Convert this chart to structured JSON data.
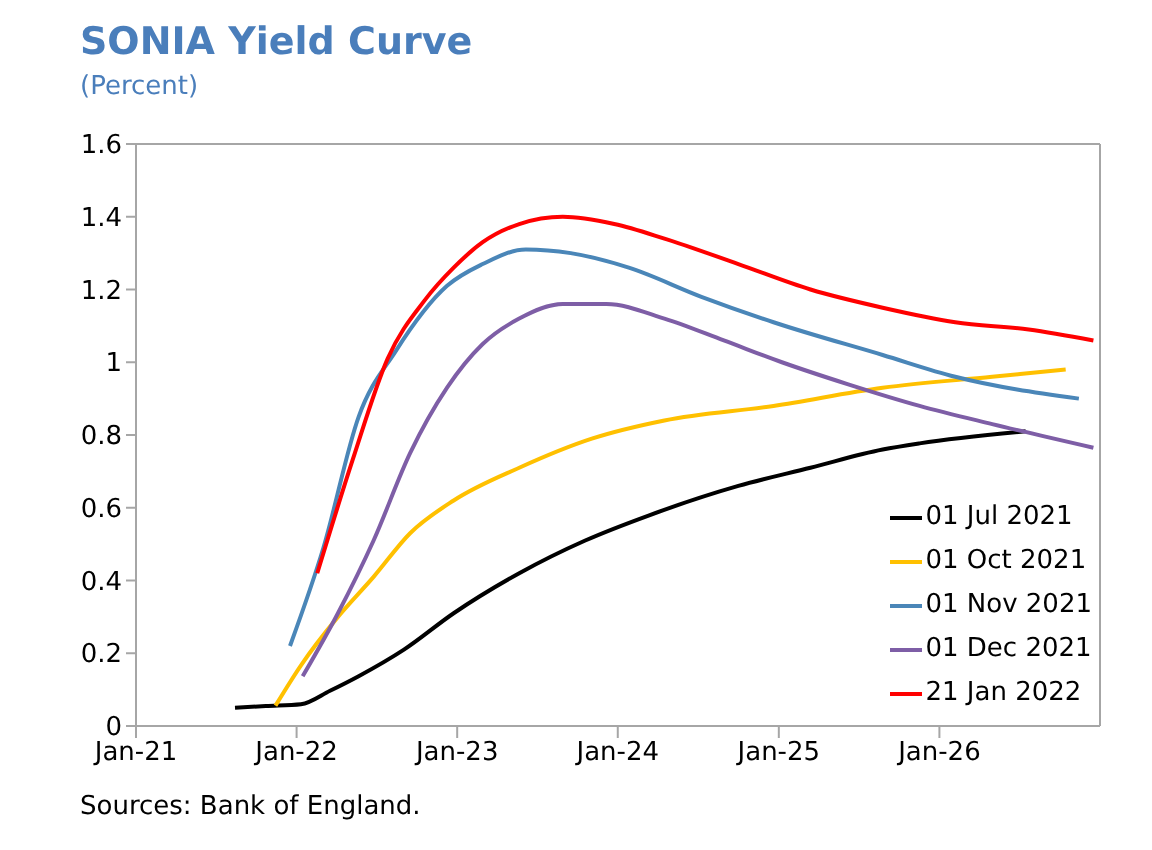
{
  "chart_data": {
    "type": "line",
    "title": "SONIA Yield Curve",
    "subtitle": "(Percent)",
    "annotations": [
      "Sources: Bank of England."
    ],
    "xlim": [
      "2021-01-01",
      "2027-01-01"
    ],
    "xticks": [
      {
        "value": "2021-01-01",
        "label": "Jan-21"
      },
      {
        "value": "2022-01-01",
        "label": "Jan-22"
      },
      {
        "value": "2023-01-01",
        "label": "Jan-23"
      },
      {
        "value": "2024-01-01",
        "label": "Jan-24"
      },
      {
        "value": "2025-01-01",
        "label": "Jan-25"
      },
      {
        "value": "2026-01-01",
        "label": "Jan-26"
      }
    ],
    "ylim": [
      0,
      1.6
    ],
    "yticks": [
      0,
      0.2,
      0.4,
      0.6,
      0.8,
      1,
      1.2,
      1.4,
      1.6
    ],
    "legend": "bottom right",
    "series": [
      {
        "name": "01 Jul 2021",
        "color": "#000000",
        "x": [
          "2021-08-14",
          "2021-10-23",
          "2022-01-11",
          "2022-03-18",
          "2022-05-22",
          "2022-09-02",
          "2022-12-24",
          "2023-05-22",
          "2023-10-19",
          "2024-03-14",
          "2024-10-01",
          "2025-03-14",
          "2025-08-25",
          "2025-11-17",
          "2026-07-16"
        ],
        "values": [
          0.05,
          0.055,
          0.06,
          0.097,
          0.137,
          0.21,
          0.31,
          0.42,
          0.51,
          0.58,
          0.66,
          0.71,
          0.76,
          0.777,
          0.81
        ]
      },
      {
        "name": "01 Oct 2021",
        "color": "#ffc000",
        "x": [
          "2021-11-14",
          "2022-01-11",
          "2022-04-05",
          "2022-06-25",
          "2022-09-16",
          "2022-12-24",
          "2023-05-22",
          "2023-11-03",
          "2024-04-16",
          "2024-12-20",
          "2025-08-25",
          "2026-05-01",
          "2026-10-15"
        ],
        "values": [
          0.056,
          0.167,
          0.3,
          0.41,
          0.53,
          0.62,
          0.71,
          0.79,
          0.84,
          0.88,
          0.93,
          0.96,
          0.98
        ]
      },
      {
        "name": "01 Nov 2021",
        "color": "#4a86b8",
        "x": [
          "2021-12-17",
          "2022-03-03",
          "2022-05-22",
          "2022-08-14",
          "2022-12-09",
          "2023-02-28",
          "2023-06-06",
          "2023-09-16",
          "2024-01-26",
          "2024-07-09",
          "2024-12-20",
          "2025-08-25",
          "2026-02-06",
          "2026-11-14"
        ],
        "values": [
          0.22,
          0.49,
          0.85,
          1.03,
          1.21,
          1.27,
          1.31,
          1.3,
          1.26,
          1.18,
          1.11,
          1.02,
          0.96,
          0.9
        ]
      },
      {
        "name": "01 Dec 2021",
        "color": "#7e5ea6",
        "x": [
          "2022-01-15",
          "2022-04-05",
          "2022-06-25",
          "2022-09-16",
          "2022-12-09",
          "2023-02-28",
          "2023-05-22",
          "2023-08-29",
          "2023-12-06",
          "2024-04-16",
          "2024-08-29",
          "2025-01-08",
          "2025-06-06",
          "2025-11-17",
          "2026-05-01",
          "2026-12-17"
        ],
        "values": [
          0.137,
          0.31,
          0.51,
          0.75,
          0.93,
          1.05,
          1.12,
          1.16,
          1.16,
          1.12,
          1.06,
          1.0,
          0.94,
          0.88,
          0.83,
          0.765
        ]
      },
      {
        "name": "21 Jan 2022",
        "color": "#ff0000",
        "x": [
          "2022-02-17",
          "2022-05-08",
          "2022-07-27",
          "2022-10-19",
          "2022-12-24",
          "2023-02-28",
          "2023-05-22",
          "2023-08-29",
          "2023-12-24",
          "2024-04-16",
          "2024-10-01",
          "2025-03-14",
          "2025-08-25",
          "2026-02-06",
          "2026-07-23",
          "2026-12-17"
        ],
        "values": [
          0.42,
          0.73,
          1.01,
          1.17,
          1.26,
          1.33,
          1.38,
          1.4,
          1.38,
          1.34,
          1.27,
          1.2,
          1.15,
          1.11,
          1.09,
          1.06
        ]
      }
    ]
  }
}
